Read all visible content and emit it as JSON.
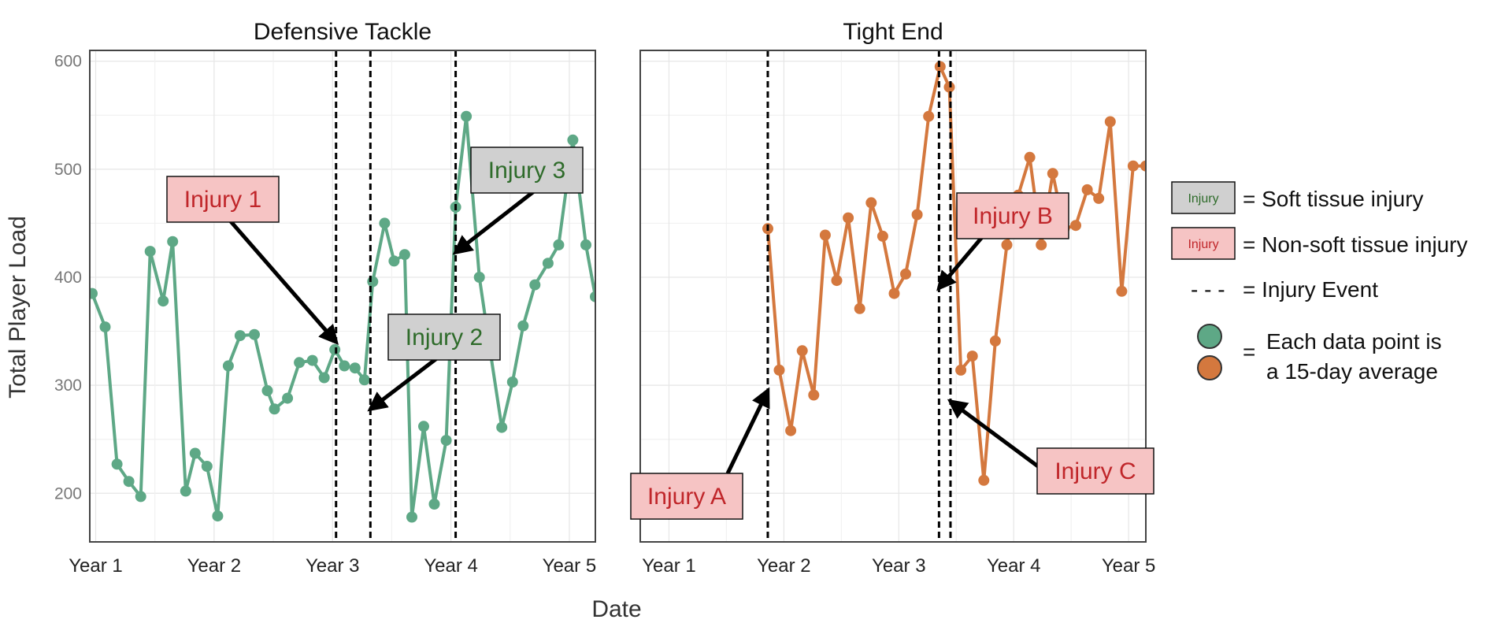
{
  "colors": {
    "dt_series": "#5ea886",
    "te_series": "#d4783e",
    "soft_box_fill": "#d0d0d0",
    "soft_text": "#2e6b2a",
    "nonsoft_box_fill": "#f6c4c4",
    "nonsoft_text": "#c0262a"
  },
  "chart_data": {
    "type": "line",
    "shared_ylabel": "Total Player Load",
    "shared_xlabel": "Date",
    "panels": [
      {
        "id": "dt",
        "title": "Defensive Tackle",
        "color": "#5ea886",
        "x_tick_labels": [
          "Year 1",
          "Year 2",
          "Year 3",
          "Year 4",
          "Year 5"
        ],
        "y_ticks": [
          200,
          300,
          400,
          500,
          600
        ],
        "ylim": [
          155,
          610
        ],
        "xlim": [
          0.95,
          5.22
        ],
        "x_unit": "year",
        "series": [
          {
            "x": [
              0.97,
              1.08,
              1.18,
              1.28,
              1.38,
              1.46,
              1.57,
              1.65,
              1.76,
              1.84,
              1.94,
              2.03,
              2.12,
              2.22,
              2.34,
              2.45,
              2.51,
              2.62,
              2.72,
              2.83,
              2.93,
              3.02,
              3.1,
              3.19,
              3.27,
              3.34,
              3.44,
              3.52,
              3.61,
              3.67,
              3.77,
              3.86,
              3.96,
              4.04,
              4.13,
              4.24,
              4.33,
              4.43,
              4.52,
              4.61,
              4.71,
              4.82,
              4.91,
              5.03,
              5.14,
              5.22
            ],
            "y": [
              385,
              354,
              227,
              211,
              197,
              424,
              378,
              433,
              202,
              237,
              225,
              179,
              318,
              346,
              347,
              295,
              278,
              288,
              321,
              323,
              307,
              333,
              318,
              316,
              305,
              396,
              450,
              415,
              421,
              178,
              262,
              190,
              249,
              465,
              549,
              400,
              333,
              261,
              303,
              355,
              393,
              413,
              430,
              527,
              430,
              382
            ]
          }
        ],
        "injury_events": [
          3.03,
          3.32,
          4.04
        ],
        "annotations": [
          {
            "label": "Injury 1",
            "type": "non-soft",
            "points_to": [
              3.03,
              340
            ]
          },
          {
            "label": "Injury 2",
            "type": "soft",
            "points_to": [
              3.32,
              278
            ]
          },
          {
            "label": "Injury 3",
            "type": "soft",
            "points_to": [
              4.04,
              423
            ]
          }
        ]
      },
      {
        "id": "te",
        "title": "Tight End",
        "color": "#d4783e",
        "x_tick_labels": [
          "Year 1",
          "Year 2",
          "Year 3",
          "Year 4",
          "Year 5"
        ],
        "y_ticks": [],
        "ylim": [
          155,
          610
        ],
        "xlim": [
          0.75,
          5.15
        ],
        "x_unit": "year",
        "series": [
          {
            "x": [
              1.86,
              1.96,
              2.06,
              2.16,
              2.26,
              2.36,
              2.46,
              2.56,
              2.66,
              2.76,
              2.86,
              2.96,
              3.06,
              3.16,
              3.26,
              3.36,
              3.44,
              3.54,
              3.64,
              3.74,
              3.84,
              3.94,
              4.04,
              4.14,
              4.24,
              4.34,
              4.44,
              4.54,
              4.64,
              4.74,
              4.84,
              4.94,
              5.04,
              5.15
            ],
            "y": [
              445,
              314,
              258,
              332,
              291,
              439,
              397,
              455,
              371,
              469,
              438,
              385,
              403,
              458,
              549,
              595,
              576,
              314,
              327,
              212,
              341,
              430,
              476,
              511,
              430,
              496,
              445,
              448,
              481,
              473,
              544,
              387,
              503,
              503
            ]
          }
        ],
        "injury_events": [
          1.86,
          3.35,
          3.45
        ],
        "annotations": [
          {
            "label": "Injury A",
            "type": "non-soft",
            "points_to": [
              1.86,
              295
            ]
          },
          {
            "label": "Injury B",
            "type": "non-soft",
            "points_to": [
              3.35,
              390
            ]
          },
          {
            "label": "Injury C",
            "type": "non-soft",
            "points_to": [
              3.45,
              285
            ]
          }
        ]
      }
    ],
    "legend": {
      "position": "right",
      "soft_swatch_label": "Injury",
      "soft_desc": "= Soft tissue injury",
      "nonsoft_swatch_label": "Injury",
      "nonsoft_desc": "= Non-soft tissue injury",
      "event_symbol": "- - -",
      "event_desc": "=  Injury Event",
      "points_eq": "=",
      "points_line1": "Each data point is",
      "points_line2": "a 15-day average"
    }
  }
}
